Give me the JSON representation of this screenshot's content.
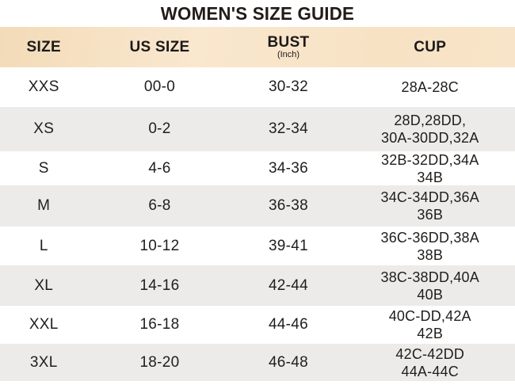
{
  "title": "WOMEN'S SIZE GUIDE",
  "table": {
    "columns": {
      "size": "SIZE",
      "us_size": "US SIZE",
      "bust": "BUST",
      "bust_sub": "(Inch)",
      "cup": "CUP"
    },
    "rows": [
      {
        "size": "XXS",
        "us_size": "00-0",
        "bust": "30-32",
        "cup": "28A-28C"
      },
      {
        "size": "XS",
        "us_size": "0-2",
        "bust": "32-34",
        "cup": "28D,28DD,\n30A-30DD,32A"
      },
      {
        "size": "S",
        "us_size": "4-6",
        "bust": "34-36",
        "cup": "32B-32DD,34A\n34B"
      },
      {
        "size": "M",
        "us_size": "6-8",
        "bust": "36-38",
        "cup": "34C-34DD,36A\n36B"
      },
      {
        "size": "L",
        "us_size": "10-12",
        "bust": "39-41",
        "cup": "36C-36DD,38A\n38B"
      },
      {
        "size": "XL",
        "us_size": "14-16",
        "bust": "42-44",
        "cup": "38C-38DD,40A\n40B"
      },
      {
        "size": "XXL",
        "us_size": "16-18",
        "bust": "44-46",
        "cup": "40C-DD,42A\n42B"
      },
      {
        "size": "3XL",
        "us_size": "18-20",
        "bust": "46-48",
        "cup": "42C-42DD\n44A-44C"
      }
    ]
  },
  "colors": {
    "header_bg": "#f8e4c8",
    "row_alt_bg": "#ecebe9",
    "text": "#1f1e1d",
    "title_text": "#221b18"
  }
}
